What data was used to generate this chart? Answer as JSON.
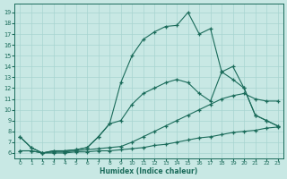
{
  "background_color": "#c8e8e4",
  "grid_color": "#a8d4d0",
  "line_color": "#1a6b5a",
  "xlim": [
    -0.5,
    23.5
  ],
  "ylim": [
    5.5,
    19.8
  ],
  "xticks": [
    0,
    1,
    2,
    3,
    4,
    5,
    6,
    7,
    8,
    9,
    10,
    11,
    12,
    13,
    14,
    15,
    16,
    17,
    18,
    19,
    20,
    21,
    22,
    23
  ],
  "yticks": [
    6,
    7,
    8,
    9,
    10,
    11,
    12,
    13,
    14,
    15,
    16,
    17,
    18,
    19
  ],
  "xlabel": "Humidex (Indice chaleur)",
  "line1_x": [
    0,
    1,
    2,
    3,
    4,
    5,
    6,
    7,
    8,
    9,
    10,
    11,
    12,
    13,
    14,
    15,
    16,
    17,
    18,
    19,
    20,
    21,
    22,
    23
  ],
  "line1_y": [
    7.5,
    6.5,
    6.0,
    6.2,
    6.2,
    6.3,
    6.5,
    7.5,
    8.7,
    12.5,
    15.0,
    16.5,
    17.2,
    17.7,
    17.8,
    19.0,
    17.0,
    17.5,
    13.5,
    14.0,
    12.0,
    9.5,
    9.0,
    8.5
  ],
  "line2_x": [
    0,
    1,
    2,
    3,
    4,
    5,
    6,
    7,
    8,
    9,
    10,
    11,
    12,
    13,
    14,
    15,
    16,
    17,
    18,
    19,
    20,
    21,
    22,
    23
  ],
  "line2_y": [
    7.5,
    6.5,
    6.0,
    6.2,
    6.2,
    6.3,
    6.5,
    7.5,
    8.7,
    9.0,
    10.5,
    11.5,
    12.0,
    12.5,
    12.8,
    12.5,
    11.5,
    10.8,
    13.5,
    12.8,
    12.0,
    9.5,
    9.0,
    8.5
  ],
  "line3_x": [
    0,
    1,
    2,
    3,
    4,
    5,
    6,
    7,
    8,
    9,
    10,
    11,
    12,
    13,
    14,
    15,
    16,
    17,
    18,
    19,
    20,
    21,
    22,
    23
  ],
  "line3_y": [
    6.2,
    6.2,
    6.0,
    6.1,
    6.1,
    6.2,
    6.3,
    6.4,
    6.5,
    6.6,
    7.0,
    7.5,
    8.0,
    8.5,
    9.0,
    9.5,
    10.0,
    10.5,
    11.0,
    11.3,
    11.5,
    11.0,
    10.8,
    10.8
  ],
  "line4_x": [
    0,
    1,
    2,
    3,
    4,
    5,
    6,
    7,
    8,
    9,
    10,
    11,
    12,
    13,
    14,
    15,
    16,
    17,
    18,
    19,
    20,
    21,
    22,
    23
  ],
  "line4_y": [
    6.2,
    6.2,
    6.0,
    6.0,
    6.0,
    6.1,
    6.1,
    6.2,
    6.2,
    6.3,
    6.4,
    6.5,
    6.7,
    6.8,
    7.0,
    7.2,
    7.4,
    7.5,
    7.7,
    7.9,
    8.0,
    8.1,
    8.3,
    8.4
  ]
}
